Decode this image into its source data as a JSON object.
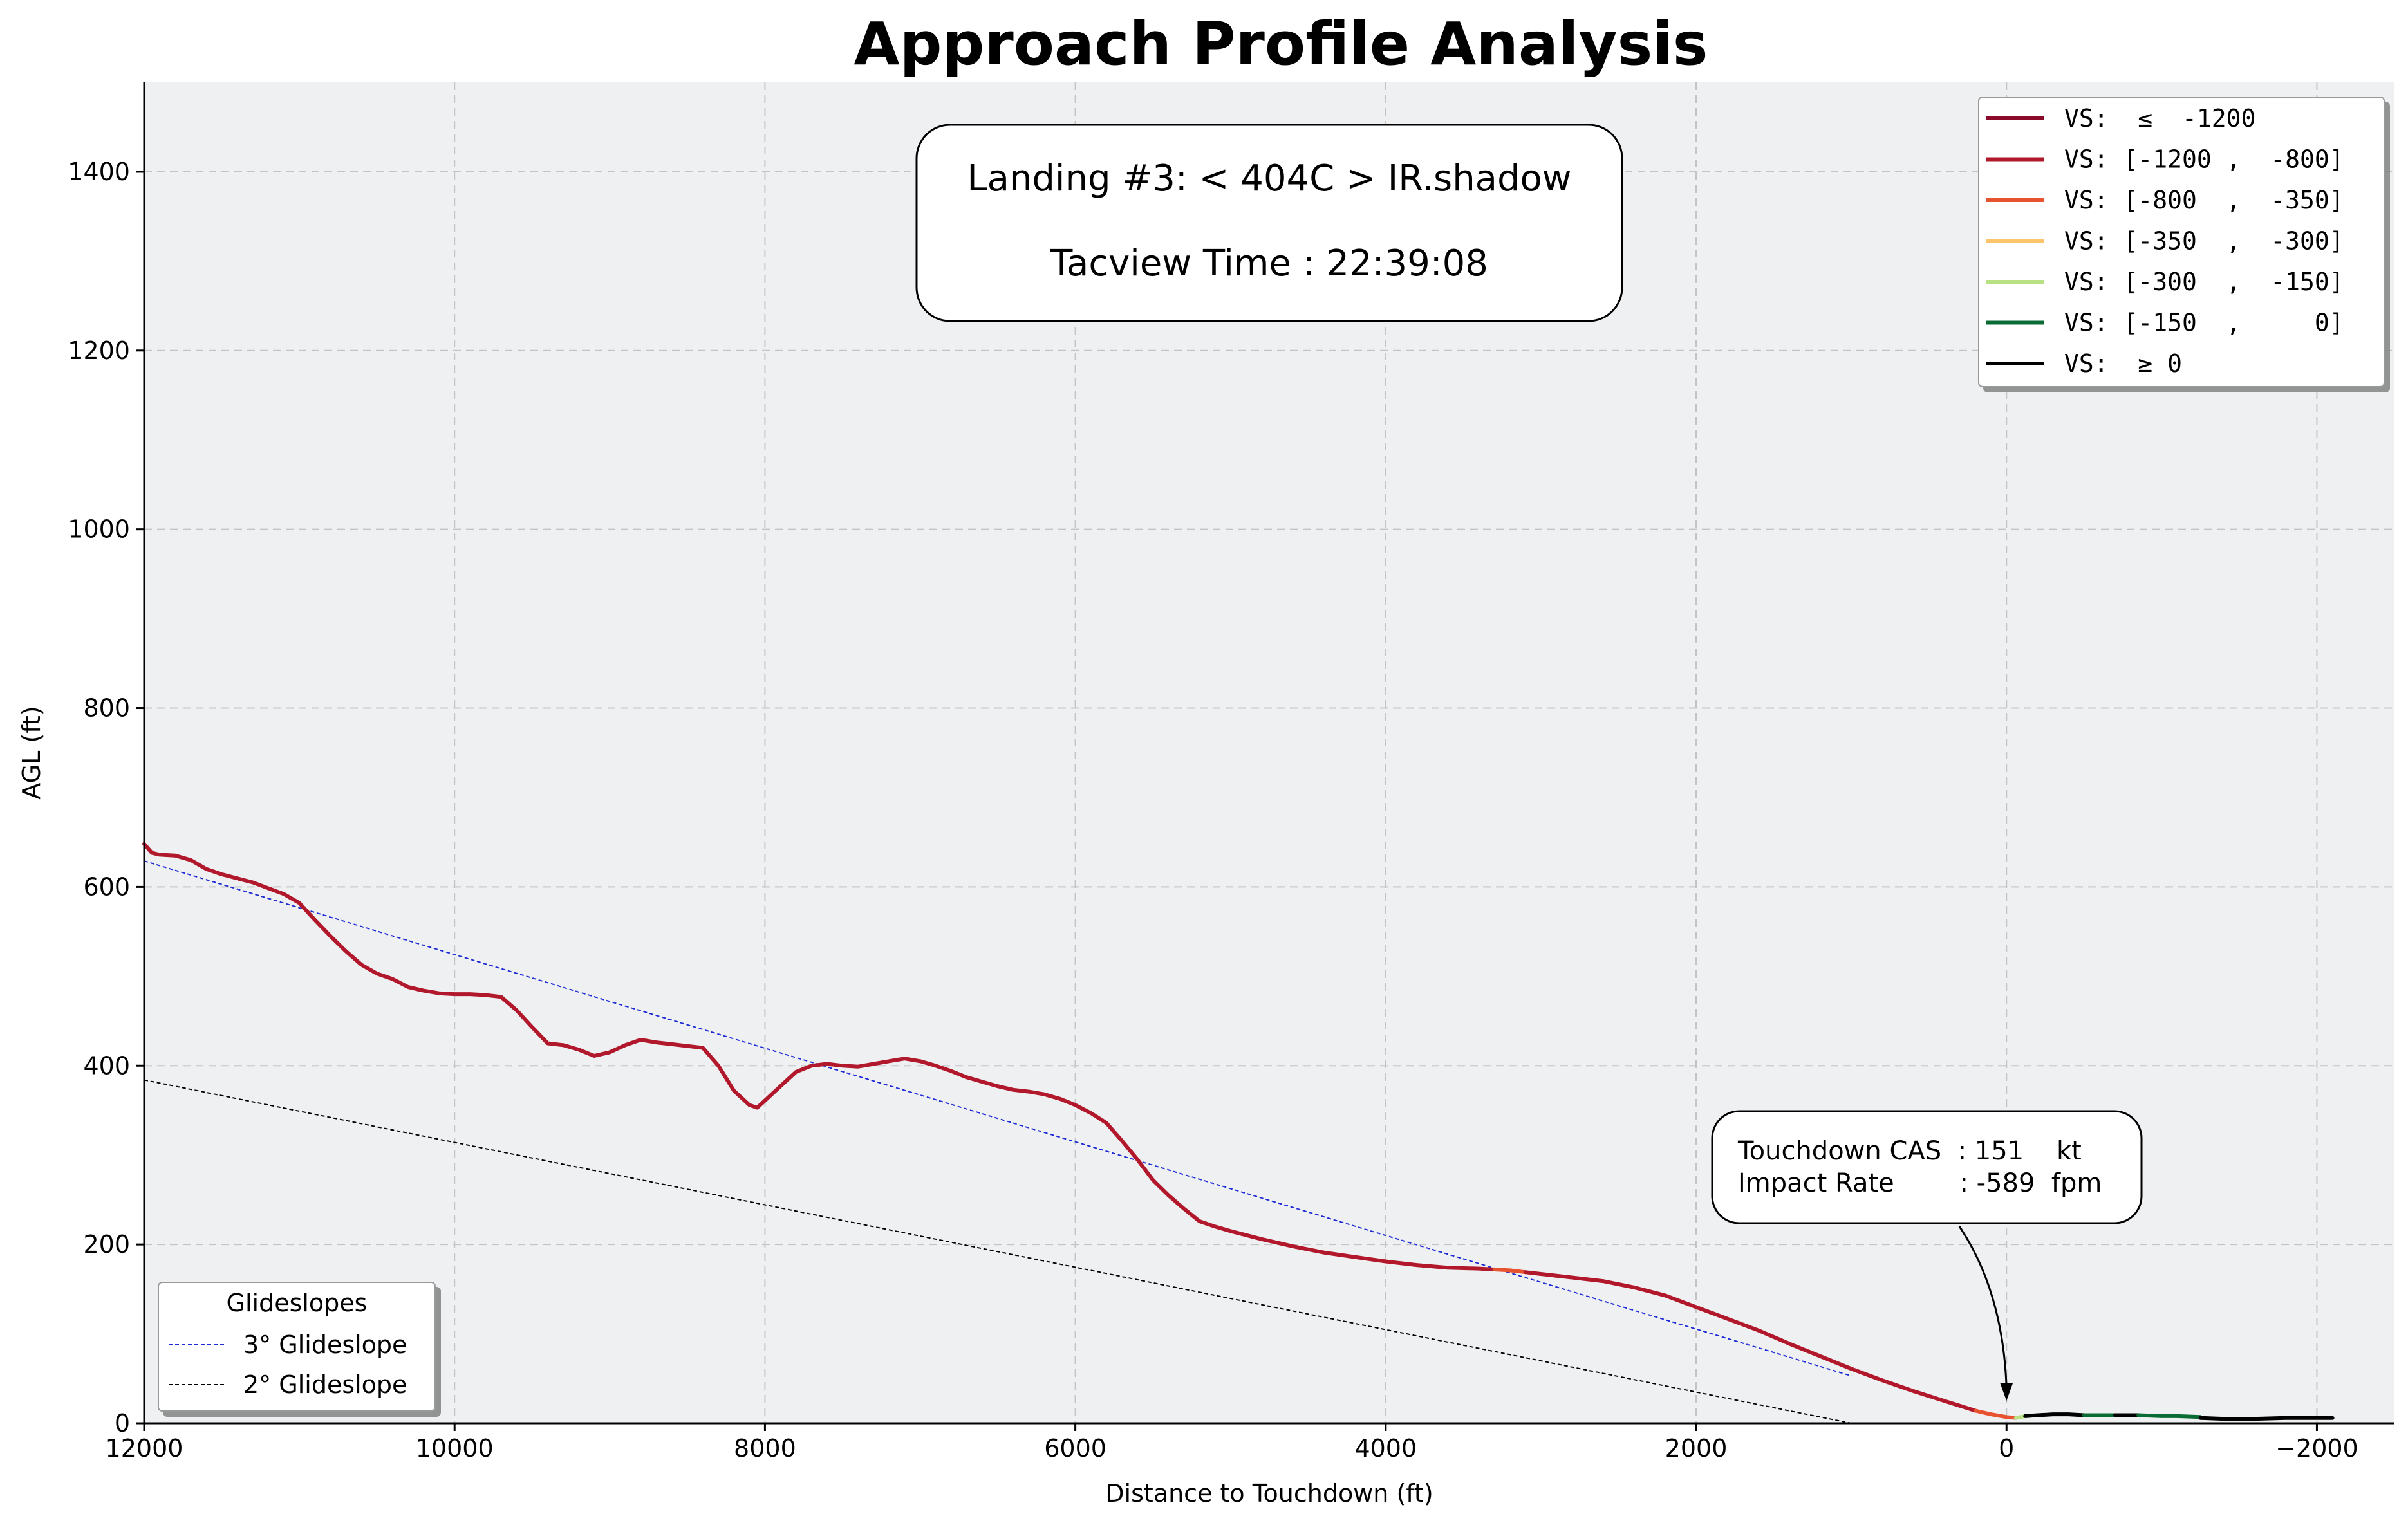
{
  "chart_data": {
    "type": "line",
    "title": "Approach Profile Analysis",
    "xlabel": "Distance to Touchdown (ft)",
    "ylabel": "AGL (ft)",
    "xlim": [
      12000,
      -2500
    ],
    "ylim": [
      0,
      1500
    ],
    "x_ticks": [
      12000,
      10000,
      8000,
      6000,
      4000,
      2000,
      0,
      -2000
    ],
    "x_tick_labels": [
      "12000",
      "10000",
      "8000",
      "6000",
      "4000",
      "2000",
      "0",
      "−2000"
    ],
    "y_ticks": [
      0,
      200,
      400,
      600,
      800,
      1000,
      1200,
      1400
    ],
    "y_tick_labels": [
      "0",
      "200",
      "400",
      "600",
      "800",
      "1000",
      "1200",
      "1400"
    ],
    "grid": true,
    "info_box": {
      "line1": "Landing #3: < 404C > IR.shadow",
      "line2": "Tacview Time : 22:39:08"
    },
    "touchdown_annotation": {
      "line1": "Touchdown CAS  : 151    kt",
      "line2": "Impact Rate        : -589  fpm",
      "arrow_to": [
        0,
        25
      ]
    },
    "vs_legend": {
      "placement": "top-right",
      "entries": [
        {
          "label": "VS:  ≤  -1200",
          "color": "#8b0a2a"
        },
        {
          "label": "VS: [-1200 ,  -800]",
          "color": "#b2182b"
        },
        {
          "label": "VS: [-800  ,  -350]",
          "color": "#e8532f"
        },
        {
          "label": "VS: [-350  ,  -300]",
          "color": "#fdc56a"
        },
        {
          "label": "VS: [-300  ,  -150]",
          "color": "#b8e186"
        },
        {
          "label": "VS: [-150  ,     0]",
          "color": "#0b6b35"
        },
        {
          "label": "VS:  ≥ 0",
          "color": "#000000"
        }
      ]
    },
    "glideslope_legend": {
      "placement": "bottom-left",
      "title": "Glideslopes",
      "entries": [
        {
          "label": "3° Glideslope",
          "color": "#1f2bd6"
        },
        {
          "label": "2° Glideslope",
          "color": "#000000"
        }
      ]
    },
    "glideslopes": [
      {
        "name": "3° Glideslope",
        "color": "#1f2bd6",
        "x": [
          12000,
          1000
        ],
        "y": [
          629,
          53
        ]
      },
      {
        "name": "2° Glideslope",
        "color": "#000000",
        "x": [
          12000,
          1000
        ],
        "y": [
          384,
          0
        ]
      }
    ],
    "series": [
      {
        "color": "#b2182b",
        "x": [
          12000,
          11950,
          11900,
          11800,
          11700,
          11600,
          11500,
          11300,
          11100,
          11000,
          10900,
          10800,
          10700,
          10600,
          10500,
          10400,
          10300,
          10200,
          10100,
          10000,
          9900,
          9800,
          9700,
          9600,
          9500,
          9400,
          9300,
          9200,
          9100,
          9000,
          8900,
          8800,
          8700,
          8600,
          8500,
          8400,
          8300,
          8200,
          8100,
          8050,
          8000,
          7900,
          7800,
          7700,
          7600,
          7500,
          7400,
          7300,
          7200,
          7100,
          7000,
          6900,
          6800,
          6700,
          6600,
          6500,
          6400,
          6300,
          6200,
          6100,
          6000,
          5900,
          5800,
          5700,
          5600,
          5500,
          5400,
          5300,
          5200,
          5100,
          5000,
          4800,
          4600,
          4400,
          4200,
          4000,
          3800,
          3600,
          3400,
          3300
        ],
        "y": [
          648,
          638,
          636,
          635,
          630,
          620,
          614,
          605,
          592,
          582,
          563,
          545,
          528,
          513,
          503,
          497,
          488,
          484,
          481,
          480,
          480,
          479,
          477,
          462,
          443,
          425,
          423,
          418,
          411,
          415,
          423,
          429,
          426,
          424,
          422,
          420,
          400,
          372,
          356,
          353,
          361,
          377,
          393,
          400,
          402,
          400,
          399,
          402,
          405,
          408,
          405,
          400,
          394,
          387,
          382,
          377,
          373,
          371,
          368,
          363,
          356,
          347,
          336,
          316,
          295,
          272,
          255,
          240,
          226,
          220,
          215,
          206,
          198,
          191,
          186,
          181,
          177,
          174,
          173,
          172
        ]
      },
      {
        "color": "#e8532f",
        "x": [
          3300,
          3200,
          3100
        ],
        "y": [
          172,
          171,
          169
        ]
      },
      {
        "color": "#b2182b",
        "x": [
          3100,
          3000,
          2800,
          2600,
          2400,
          2200,
          2000,
          1800,
          1600,
          1400,
          1200,
          1000,
          800,
          600,
          400,
          200
        ],
        "y": [
          169,
          167,
          163,
          159,
          152,
          143,
          130,
          117,
          104,
          89,
          75,
          61,
          48,
          36,
          25,
          14
        ]
      },
      {
        "color": "#e8532f",
        "x": [
          200,
          100,
          0,
          -60
        ],
        "y": [
          14,
          10,
          7,
          6
        ]
      },
      {
        "color": "#b8e186",
        "x": [
          -60,
          -120
        ],
        "y": [
          6,
          8
        ]
      },
      {
        "color": "#000000",
        "x": [
          -120,
          -200,
          -300,
          -400,
          -500
        ],
        "y": [
          8,
          9,
          10,
          10,
          9
        ]
      },
      {
        "color": "#0b6b35",
        "x": [
          -500,
          -600,
          -700
        ],
        "y": [
          9,
          9,
          9
        ]
      },
      {
        "color": "#000000",
        "x": [
          -700,
          -850
        ],
        "y": [
          9,
          9
        ]
      },
      {
        "color": "#0b6b35",
        "x": [
          -850,
          -1000,
          -1100,
          -1250
        ],
        "y": [
          9,
          8,
          8,
          7
        ]
      },
      {
        "color": "#000000",
        "x": [
          -1250,
          -1400,
          -1600,
          -1800,
          -2000,
          -2100
        ],
        "y": [
          6,
          5,
          5,
          6,
          6,
          6
        ]
      }
    ]
  }
}
